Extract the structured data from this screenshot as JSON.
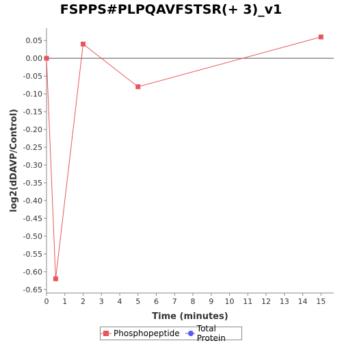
{
  "chart_data": {
    "type": "line",
    "title": "FSPPS#PLPQAVFSTSR(+ 3)_v1",
    "xlabel": "Time (minutes)",
    "ylabel": "log2(dDAVP/Control)",
    "xlim": [
      0,
      15.7
    ],
    "ylim": [
      -0.66,
      0.085
    ],
    "xticks": [
      0,
      1,
      2,
      3,
      4,
      5,
      6,
      7,
      8,
      9,
      10,
      11,
      12,
      13,
      14,
      15
    ],
    "yticks": [
      0.05,
      0.0,
      -0.05,
      -0.1,
      -0.15,
      -0.2,
      -0.25,
      -0.3,
      -0.35,
      -0.4,
      -0.45,
      -0.5,
      -0.55,
      -0.6,
      -0.65
    ],
    "ytick_labels": [
      "0.05",
      "0.00",
      "-0.05",
      "-0.10",
      "-0.15",
      "-0.20",
      "-0.25",
      "-0.30",
      "-0.35",
      "-0.40",
      "-0.45",
      "-0.50",
      "-0.55",
      "-0.60",
      "-0.65"
    ],
    "zero_line": true,
    "grid": false,
    "legend_position": "bottom",
    "series": [
      {
        "name": "Phosphopeptide",
        "color": "#e8555a",
        "marker": "square",
        "x": [
          0,
          0.5,
          2,
          5,
          15
        ],
        "y": [
          0.0,
          -0.62,
          0.04,
          -0.08,
          0.06
        ]
      },
      {
        "name": "Total Protein",
        "color": "#5b5bef",
        "marker": "circle",
        "x": [],
        "y": []
      }
    ]
  }
}
